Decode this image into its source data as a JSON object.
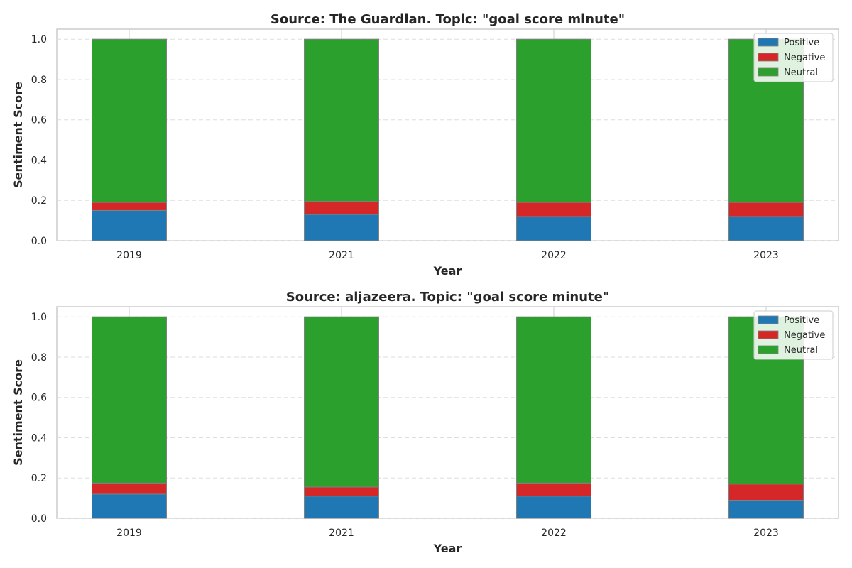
{
  "colors": {
    "positive": "#1f77b4",
    "negative": "#d62728",
    "neutral": "#2ca02c",
    "grid": "#dddddd",
    "frame": "#cccccc",
    "bar_edge": "#808080"
  },
  "chart_data": [
    {
      "type": "bar",
      "stacked": true,
      "title": "Source: The Guardian. Topic: \"goal score minute\"",
      "xlabel": "Year",
      "ylabel": "Sentiment Score",
      "categories": [
        "2019",
        "2021",
        "2022",
        "2023"
      ],
      "ylim": [
        0,
        1.05
      ],
      "yticks": [
        "0.0",
        "0.2",
        "0.4",
        "0.6",
        "0.8",
        "1.0"
      ],
      "grid": "y dashed",
      "legend_position": "top-right",
      "series": [
        {
          "name": "Positive",
          "color": "#1f77b4",
          "values": [
            0.15,
            0.13,
            0.12,
            0.12
          ]
        },
        {
          "name": "Negative",
          "color": "#d62728",
          "values": [
            0.04,
            0.065,
            0.07,
            0.07
          ]
        },
        {
          "name": "Neutral",
          "color": "#2ca02c",
          "values": [
            0.81,
            0.805,
            0.81,
            0.81
          ]
        }
      ]
    },
    {
      "type": "bar",
      "stacked": true,
      "title": "Source: aljazeera. Topic: \"goal score minute\"",
      "xlabel": "Year",
      "ylabel": "Sentiment Score",
      "categories": [
        "2019",
        "2021",
        "2022",
        "2023"
      ],
      "ylim": [
        0,
        1.05
      ],
      "yticks": [
        "0.0",
        "0.2",
        "0.4",
        "0.6",
        "0.8",
        "1.0"
      ],
      "grid": "y dashed",
      "legend_position": "top-right",
      "series": [
        {
          "name": "Positive",
          "color": "#1f77b4",
          "values": [
            0.12,
            0.11,
            0.11,
            0.09
          ]
        },
        {
          "name": "Negative",
          "color": "#d62728",
          "values": [
            0.055,
            0.045,
            0.065,
            0.08
          ]
        },
        {
          "name": "Neutral",
          "color": "#2ca02c",
          "values": [
            0.825,
            0.845,
            0.825,
            0.83
          ]
        }
      ]
    }
  ]
}
